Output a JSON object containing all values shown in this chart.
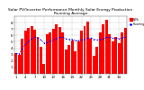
{
  "title": "Solar PV/Inverter Performance Monthly Solar Energy Production Running Average",
  "bar_values": [
    3.2,
    3.0,
    5.5,
    6.8,
    7.2,
    7.5,
    6.9,
    5.8,
    4.2,
    1.5,
    6.2,
    6.5,
    7.0,
    7.8,
    7.3,
    6.5,
    3.8,
    4.5,
    5.2,
    3.5,
    5.0,
    6.8,
    7.5,
    8.2,
    5.5,
    2.8,
    4.2,
    6.5,
    7.8,
    8.5,
    6.2,
    5.0,
    5.8,
    4.8,
    6.5,
    7.2
  ],
  "running_avg": [
    3.2,
    3.1,
    4.0,
    4.6,
    5.1,
    5.5,
    5.7,
    5.6,
    5.3,
    4.8,
    4.9,
    5.1,
    5.3,
    5.5,
    5.7,
    5.7,
    5.5,
    5.4,
    5.4,
    5.2,
    5.2,
    5.3,
    5.4,
    5.6,
    5.6,
    5.4,
    5.3,
    5.4,
    5.5,
    5.7,
    5.7,
    5.6,
    5.6,
    5.5,
    5.6,
    5.7
  ],
  "bar_color": "#FF0000",
  "avg_color": "#0000FF",
  "background_color": "#FFFFFF",
  "grid_color": "#999999",
  "ylim": [
    0,
    9
  ],
  "ylabel_ticks": [
    1,
    2,
    3,
    4,
    5,
    6,
    7,
    8
  ],
  "title_fontsize": 3.2,
  "tick_fontsize": 2.8,
  "legend_items": [
    "kWh",
    "Running Avg"
  ],
  "legend_colors": [
    "#FF0000",
    "#0000FF"
  ]
}
